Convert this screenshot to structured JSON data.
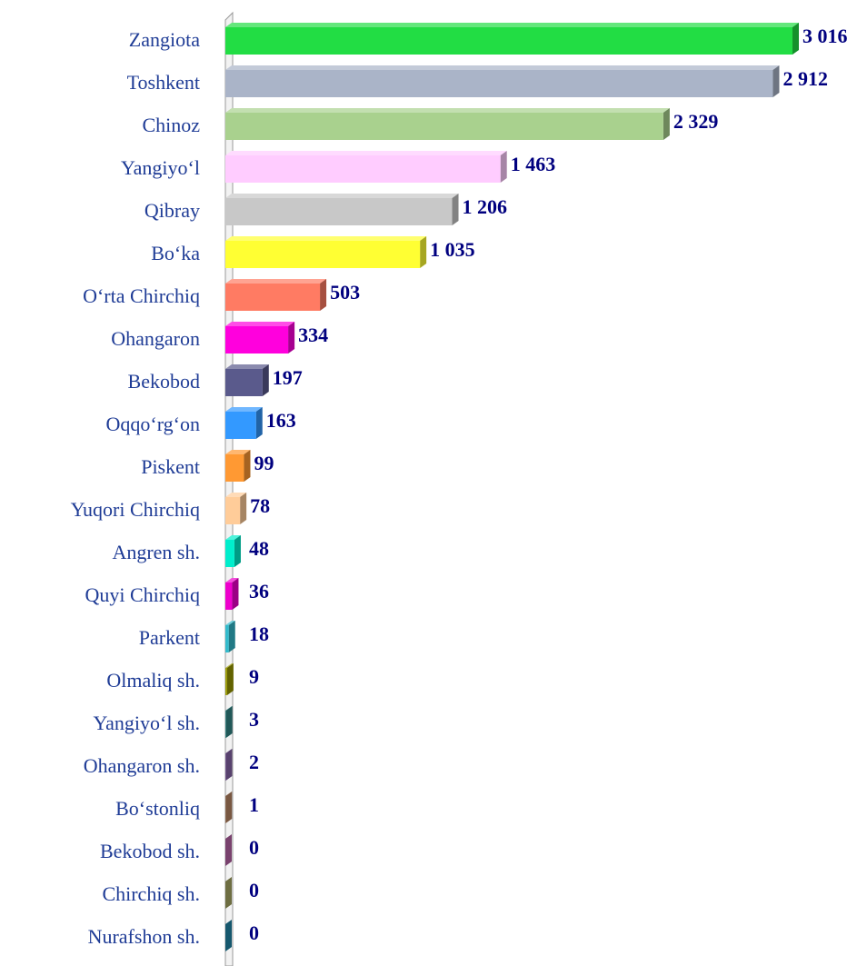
{
  "chart_data": {
    "type": "bar",
    "orientation": "horizontal",
    "categories": [
      "Zangiota",
      "Toshkent",
      "Chinoz",
      "Yangiyo‘l",
      "Qibray",
      "Bo‘ka",
      "O‘rta Chirchiq",
      "Ohangaron",
      "Bekobod",
      "Oqqo‘rg‘on",
      "Piskent",
      "Yuqori Chirchiq",
      "Angren sh.",
      "Quyi Chirchiq",
      "Parkent",
      "Olmaliq sh.",
      "Yangiyo‘l sh.",
      "Ohangaron sh.",
      "Bo‘stonliq",
      "Bekobod sh.",
      "Chirchiq sh.",
      "Nurafshon sh."
    ],
    "values": [
      3016,
      2912,
      2329,
      1463,
      1206,
      1035,
      503,
      334,
      197,
      163,
      99,
      78,
      48,
      36,
      18,
      9,
      3,
      2,
      1,
      0,
      0,
      0
    ],
    "value_labels": [
      "3 016",
      "2 912",
      "2 329",
      "1 463",
      "1 206",
      "1 035",
      "503",
      "334",
      "197",
      "163",
      "99",
      "78",
      "48",
      "36",
      "18",
      "9",
      "3",
      "2",
      "1",
      "0",
      "0",
      "0"
    ],
    "colors": [
      "#22dd44",
      "#aab4c8",
      "#a9d18e",
      "#ffccff",
      "#c8c8c8",
      "#ffff33",
      "#ff7b63",
      "#ff00dd",
      "#5a5a8c",
      "#3399ff",
      "#ff9933",
      "#ffcc99",
      "#00eecc",
      "#ee00cc",
      "#33bbcc",
      "#999900",
      "#338888",
      "#8866aa",
      "#bb8866",
      "#bb66aa",
      "#aaaa66",
      "#2288aa"
    ]
  }
}
